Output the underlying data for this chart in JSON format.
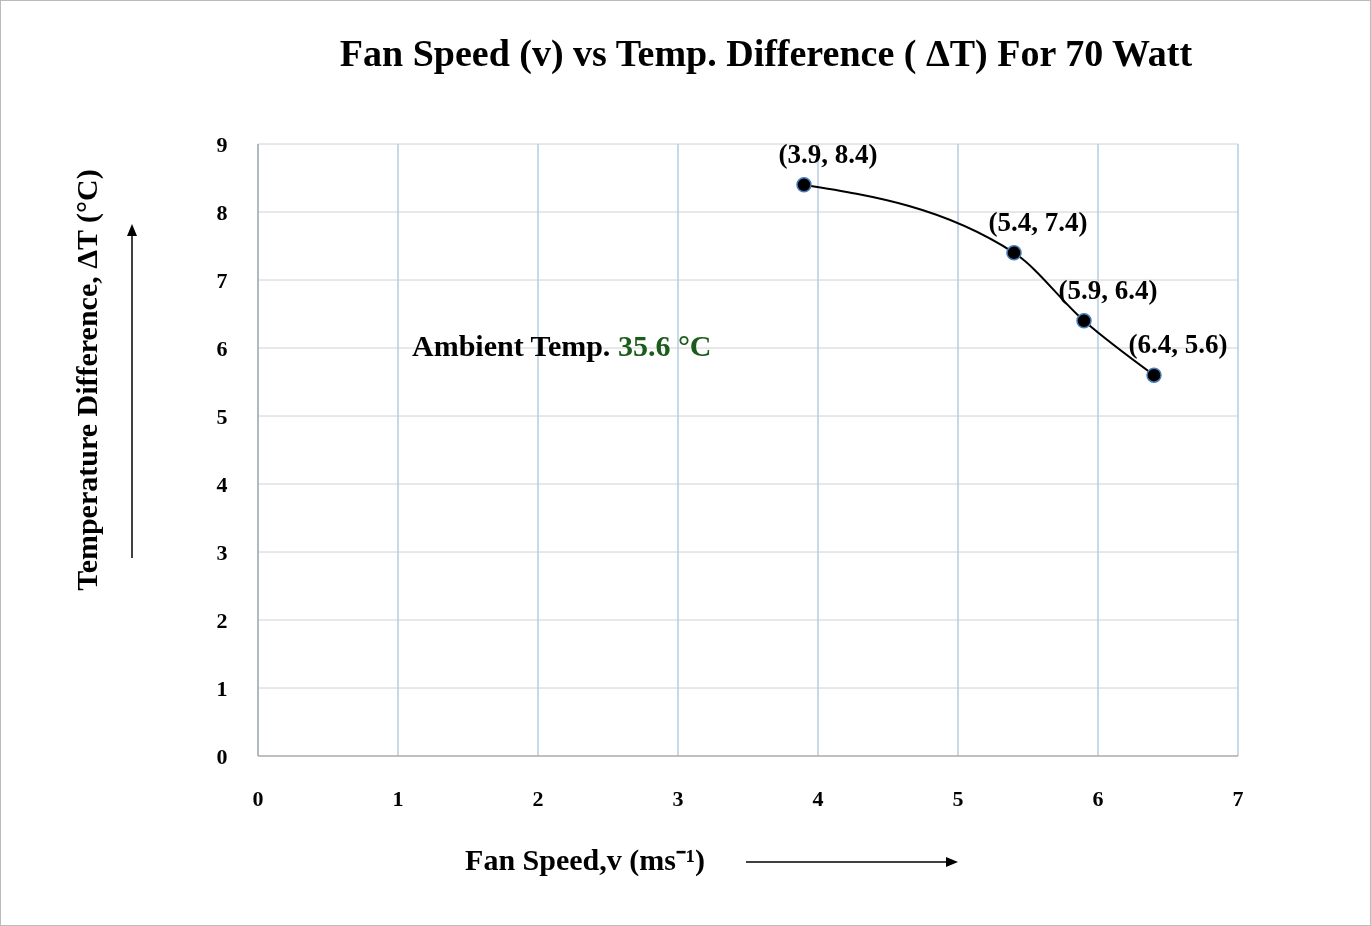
{
  "chart_data": {
    "type": "line",
    "title": "Fan Speed (v) vs Temp. Difference ( ΔT) For 70 Watt",
    "xlabel": "Fan Speed,v (ms⁻¹)",
    "ylabel": "Temperature Difference, ΔT (°C)",
    "annotations": [
      "Ambient Temp.",
      "35.6 °C"
    ],
    "x": [
      3.9,
      5.4,
      5.9,
      6.4
    ],
    "series": [
      {
        "color": "#000000",
        "values": [
          8.4,
          7.4,
          6.4,
          5.6
        ],
        "value_labels": [
          "(3.9, 8.4)",
          "(5.4, 7.4)",
          "(5.9, 6.4)",
          "(6.4, 5.6)"
        ]
      }
    ],
    "xlim": [
      0,
      7
    ],
    "xticks": [
      0,
      1,
      2,
      3,
      4,
      5,
      6,
      7
    ],
    "ylim": [
      0,
      9
    ],
    "yticks": [
      0,
      1,
      2,
      3,
      4,
      5,
      6,
      7,
      8,
      9
    ],
    "grid": true,
    "marker": "circle",
    "line_style": "solid"
  }
}
